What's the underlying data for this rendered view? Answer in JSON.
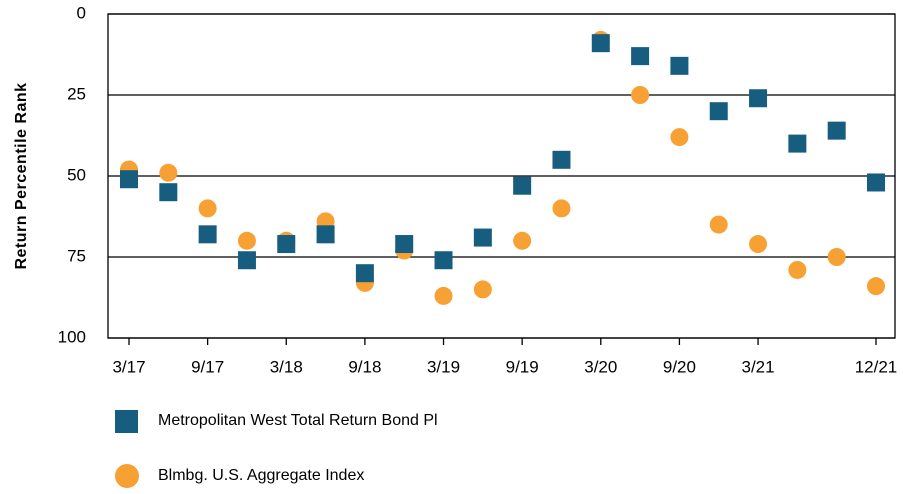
{
  "chart_data": {
    "type": "scatter",
    "ylabel": "Return Percentile Rank",
    "categories": [
      "3/17",
      null,
      "9/17",
      null,
      "3/18",
      null,
      "9/18",
      null,
      "3/19",
      null,
      "9/19",
      null,
      "3/20",
      null,
      "9/20",
      null,
      "3/21",
      null,
      null,
      "12/21"
    ],
    "series": [
      {
        "name": "Metropolitan West Total Return Bond Pl",
        "color": "#175d7f",
        "marker": "square",
        "values": [
          51,
          55,
          68,
          76,
          71,
          68,
          80,
          71,
          76,
          69,
          53,
          45,
          9,
          13,
          16,
          30,
          26,
          40,
          36,
          52
        ]
      },
      {
        "name": "Blmbg. U.S. Aggregate Index",
        "color": "#f7a033",
        "marker": "circle",
        "values": [
          48,
          49,
          60,
          70,
          70,
          64,
          83,
          73,
          87,
          85,
          70,
          60,
          8,
          25,
          38,
          65,
          71,
          79,
          75,
          84
        ]
      }
    ],
    "ylim": [
      0,
      100
    ],
    "yticks": [
      0,
      25,
      50,
      75,
      100
    ],
    "yinverted": true,
    "grid": true,
    "legend": "bottom"
  }
}
